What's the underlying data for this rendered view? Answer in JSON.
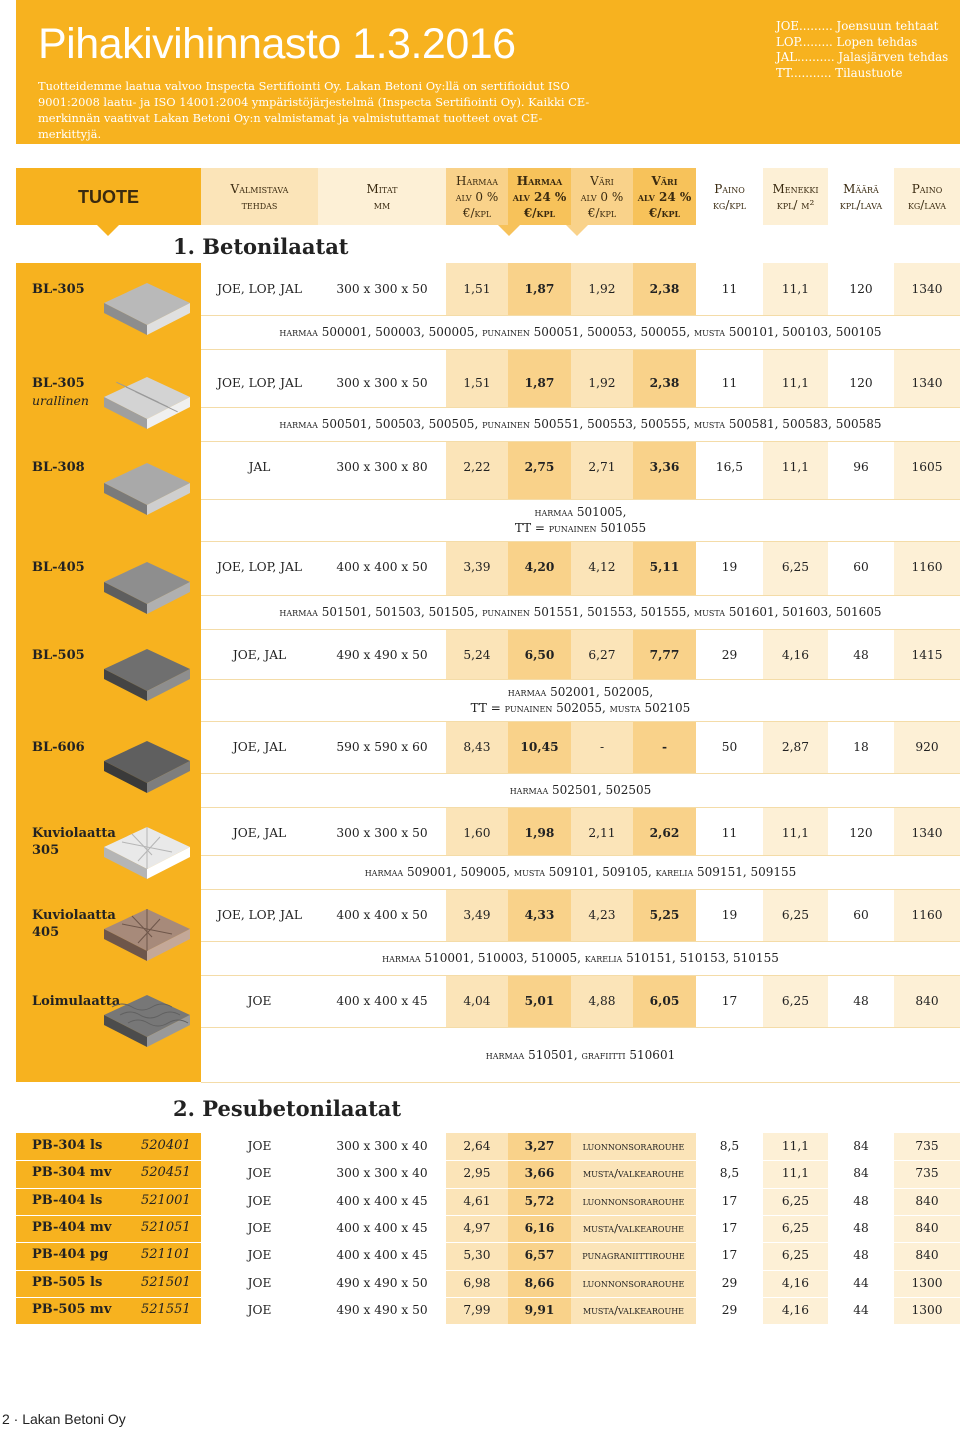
{
  "header": {
    "title": "Pihakivihinnasto 1.3.2016",
    "intro": "Tuotteidemme laatua valvoo Inspecta Sertifiointi Oy. Lakan Betoni Oy:llä on sertifioidut ISO 9001:2008 laatu- ja ISO 14001:2004 ympäristöjärjestelmä (Inspecta Sertifiointi Oy). Kaikki CE-merkinnän vaativat Lakan Betoni Oy:n valmistamat ja valmistuttamat tuotteet ovat CE-merkittyjä.",
    "legend": [
      "JOE......... Joensuun tehtaat",
      "LOP......... Lopen tehdas",
      "JAL.......... Jalasjärven tehdas",
      "TT........... Tilaustuote"
    ]
  },
  "columns": {
    "tuote": "TUOTE",
    "valmistava_1": "Valmistava",
    "valmistava_2": "tehdas",
    "mitat_1": "Mitat",
    "mitat_2": "mm",
    "harmaa0_1": "Harmaa",
    "harmaa0_2": "alv 0 %",
    "harmaa0_3": "€/kpl",
    "harmaa24_1": "Harmaa",
    "harmaa24_2": "alv 24 %",
    "harmaa24_3": "€/kpl",
    "vari0_1": "Väri",
    "vari0_2": "alv 0 %",
    "vari0_3": "€/kpl",
    "vari24_1": "Väri",
    "vari24_2": "alv 24 %",
    "vari24_3": "€/kpl",
    "paino_1": "Paino",
    "paino_2": "kg/kpl",
    "menekki_1": "Menekki",
    "menekki_2": "kpl/ m²",
    "maara_1": "Määrä",
    "maara_2": "kpl/lava",
    "painolava_1": "Paino",
    "painolava_2": "kg/lava"
  },
  "section1": {
    "title": "1. Betonilaatat",
    "rows": [
      {
        "name": "BL-305",
        "sub": "",
        "factory": "JOE, LOP, JAL",
        "dims": "300 x 300 x 50",
        "h0": "1,51",
        "h24": "1,87",
        "v0": "1,92",
        "v24": "2,38",
        "paino": "11",
        "menekki": "11,1",
        "maara": "120",
        "lava": "1340",
        "codes1": "harmaa 500001, 500003, 500005, punainen 500051, 500053, 500055, musta 500101, 500103, 500105",
        "codes2": ""
      },
      {
        "name": "BL-305",
        "sub": "urallinen",
        "factory": "JOE, LOP, JAL",
        "dims": "300 x 300 x 50",
        "h0": "1,51",
        "h24": "1,87",
        "v0": "1,92",
        "v24": "2,38",
        "paino": "11",
        "menekki": "11,1",
        "maara": "120",
        "lava": "1340",
        "codes1": "harmaa 500501, 500503, 500505, punainen 500551, 500553, 500555, musta 500581, 500583, 500585",
        "codes2": ""
      },
      {
        "name": "BL-308",
        "sub": "",
        "factory": "JAL",
        "dims": "300 x 300 x 80",
        "h0": "2,22",
        "h24": "2,75",
        "v0": "2,71",
        "v24": "3,36",
        "paino": "16,5",
        "menekki": "11,1",
        "maara": "96",
        "lava": "1605",
        "codes1": "harmaa 501005,",
        "codes2": "TT = punainen 501055"
      },
      {
        "name": "BL-405",
        "sub": "",
        "factory": "JOE, LOP, JAL",
        "dims": "400 x 400 x 50",
        "h0": "3,39",
        "h24": "4,20",
        "v0": "4,12",
        "v24": "5,11",
        "paino": "19",
        "menekki": "6,25",
        "maara": "60",
        "lava": "1160",
        "codes1": "harmaa 501501, 501503, 501505, punainen 501551, 501553, 501555, musta 501601, 501603, 501605",
        "codes2": ""
      },
      {
        "name": "BL-505",
        "sub": "",
        "factory": "JOE, JAL",
        "dims": "490 x 490 x 50",
        "h0": "5,24",
        "h24": "6,50",
        "v0": "6,27",
        "v24": "7,77",
        "paino": "29",
        "menekki": "4,16",
        "maara": "48",
        "lava": "1415",
        "codes1": "harmaa 502001, 502005,",
        "codes2": "TT = punainen 502055, musta 502105"
      },
      {
        "name": "BL-606",
        "sub": "",
        "factory": "JOE, JAL",
        "dims": "590 x 590 x 60",
        "h0": "8,43",
        "h24": "10,45",
        "v0": "-",
        "v24": "-",
        "paino": "50",
        "menekki": "2,87",
        "maara": "18",
        "lava": "920",
        "codes1": "harmaa 502501, 502505",
        "codes2": ""
      },
      {
        "name": "Kuviolaatta",
        "sub": "305",
        "factory": "JOE, JAL",
        "dims": "300 x 300 x 50",
        "h0": "1,60",
        "h24": "1,98",
        "v0": "2,11",
        "v24": "2,62",
        "paino": "11",
        "menekki": "11,1",
        "maara": "120",
        "lava": "1340",
        "codes1": "harmaa 509001, 509005, musta 509101, 509105, karelia 509151, 509155",
        "codes2": ""
      },
      {
        "name": "Kuviolaatta",
        "sub": "405",
        "factory": "JOE, LOP, JAL",
        "dims": "400 x 400 x 50",
        "h0": "3,49",
        "h24": "4,33",
        "v0": "4,23",
        "v24": "5,25",
        "paino": "19",
        "menekki": "6,25",
        "maara": "60",
        "lava": "1160",
        "codes1": "harmaa 510001, 510003, 510005, karelia 510151, 510153, 510155",
        "codes2": ""
      },
      {
        "name": "Loimulaatta",
        "sub": "",
        "factory": "JOE",
        "dims": "400 x 400 x 45",
        "h0": "4,04",
        "h24": "5,01",
        "v0": "4,88",
        "v24": "6,05",
        "paino": "17",
        "menekki": "6,25",
        "maara": "48",
        "lava": "840",
        "codes1": "harmaa 510501, grafiitti 510601",
        "codes2": ""
      }
    ]
  },
  "section2": {
    "title": "2. Pesubetonilaatat",
    "rows": [
      {
        "name": "PB-304 ls",
        "code": "520401",
        "factory": "JOE",
        "dims": "300 x 300 x 40",
        "h0": "2,64",
        "h24": "3,27",
        "color": "luonnonsorarouhe",
        "paino": "8,5",
        "menekki": "11,1",
        "maara": "84",
        "lava": "735"
      },
      {
        "name": "PB-304 mv",
        "code": "520451",
        "factory": "JOE",
        "dims": "300 x 300 x 40",
        "h0": "2,95",
        "h24": "3,66",
        "color": "musta/valkearouhe",
        "paino": "8,5",
        "menekki": "11,1",
        "maara": "84",
        "lava": "735"
      },
      {
        "name": "PB-404 ls",
        "code": "521001",
        "factory": "JOE",
        "dims": "400 x 400 x 45",
        "h0": "4,61",
        "h24": "5,72",
        "color": "luonnonsorarouhe",
        "paino": "17",
        "menekki": "6,25",
        "maara": "48",
        "lava": "840"
      },
      {
        "name": "PB-404 mv",
        "code": "521051",
        "factory": "JOE",
        "dims": "400 x 400 x 45",
        "h0": "4,97",
        "h24": "6,16",
        "color": "musta/valkearouhe",
        "paino": "17",
        "menekki": "6,25",
        "maara": "48",
        "lava": "840"
      },
      {
        "name": "PB-404 pg",
        "code": "521101",
        "factory": "JOE",
        "dims": "400 x 400 x 45",
        "h0": "5,30",
        "h24": "6,57",
        "color": "punagraniittirouhe",
        "paino": "17",
        "menekki": "6,25",
        "maara": "48",
        "lava": "840"
      },
      {
        "name": "PB-505 ls",
        "code": "521501",
        "factory": "JOE",
        "dims": "490 x 490 x 50",
        "h0": "6,98",
        "h24": "8,66",
        "color": "luonnonsorarouhe",
        "paino": "29",
        "menekki": "4,16",
        "maara": "44",
        "lava": "1300"
      },
      {
        "name": "PB-505 mv",
        "code": "521551",
        "factory": "JOE",
        "dims": "490 x 490 x 50",
        "h0": "7,99",
        "h24": "9,91",
        "color": "musta/valkearouhe",
        "paino": "29",
        "menekki": "4,16",
        "maara": "44",
        "lava": "1300"
      }
    ]
  },
  "tiles": [
    "light-grey-tile",
    "grooved-tile",
    "grey-thick-tile",
    "mid-grey-tile",
    "dark-grey-tile",
    "dark-grey-large-tile",
    "white-pattern-tile",
    "red-pattern-tile",
    "wave-pattern-tile"
  ],
  "colors": {
    "accent": "#f7b21f",
    "light": "#fbe4b8",
    "mid": "#f9d28a",
    "dark": "#f7c25a"
  },
  "footer": "2 · Lakan Betoni Oy"
}
